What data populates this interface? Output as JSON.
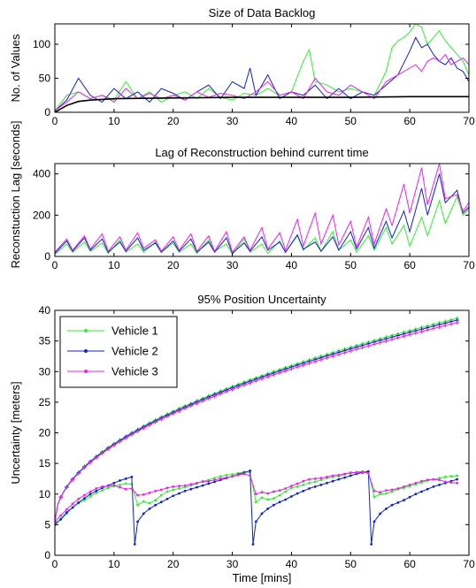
{
  "colors": {
    "vehicle1": "#33ee33",
    "vehicle2": "#1122cc",
    "vehicle3": "#ee22ee",
    "reference": "#000000"
  },
  "chart_data": [
    {
      "type": "line",
      "title": "Size of Data Backlog",
      "xlabel": "",
      "ylabel": "No. of Values",
      "xlim": [
        0,
        70
      ],
      "ylim": [
        0,
        130
      ],
      "xticks": [
        0,
        10,
        20,
        30,
        40,
        50,
        60,
        70
      ],
      "yticks": [
        0,
        50,
        100
      ],
      "series": [
        {
          "key": "vehicle1",
          "name": "Vehicle 1",
          "x": [
            0,
            2,
            4,
            6,
            8,
            10,
            12,
            14,
            16,
            18,
            20,
            22,
            24,
            26,
            28,
            30,
            32,
            34,
            36,
            38,
            40,
            42,
            43,
            44,
            46,
            48,
            50,
            52,
            54,
            56,
            57,
            58,
            59,
            60,
            61,
            62,
            63,
            64,
            65,
            66,
            67,
            68,
            69,
            70
          ],
          "y": [
            2,
            25,
            30,
            20,
            25,
            18,
            45,
            20,
            30,
            15,
            25,
            30,
            20,
            35,
            22,
            18,
            28,
            25,
            35,
            25,
            30,
            75,
            92,
            45,
            40,
            30,
            35,
            30,
            25,
            60,
            95,
            105,
            110,
            118,
            130,
            125,
            100,
            110,
            120,
            105,
            95,
            85,
            75,
            55
          ]
        },
        {
          "key": "vehicle2",
          "name": "Vehicle 2",
          "x": [
            0,
            2,
            4,
            6,
            8,
            10,
            12,
            14,
            16,
            18,
            20,
            22,
            24,
            26,
            28,
            30,
            32,
            33,
            34,
            36,
            38,
            40,
            42,
            44,
            46,
            48,
            50,
            52,
            54,
            56,
            58,
            60,
            61,
            62,
            63,
            64,
            65,
            66,
            67,
            68,
            69,
            70
          ],
          "y": [
            2,
            18,
            50,
            25,
            15,
            35,
            20,
            30,
            15,
            35,
            28,
            18,
            30,
            40,
            20,
            45,
            35,
            65,
            25,
            55,
            20,
            30,
            25,
            40,
            20,
            35,
            20,
            30,
            25,
            40,
            55,
            90,
            110,
            95,
            100,
            85,
            75,
            70,
            80,
            65,
            60,
            45
          ]
        },
        {
          "key": "vehicle3",
          "name": "Vehicle 3",
          "x": [
            0,
            2,
            4,
            6,
            8,
            10,
            12,
            14,
            16,
            18,
            20,
            22,
            24,
            26,
            28,
            30,
            32,
            34,
            36,
            38,
            40,
            42,
            44,
            46,
            48,
            50,
            52,
            54,
            56,
            58,
            60,
            61,
            62,
            63,
            64,
            65,
            66,
            67,
            68,
            69,
            70
          ],
          "y": [
            2,
            15,
            30,
            20,
            25,
            15,
            35,
            20,
            28,
            20,
            25,
            18,
            30,
            22,
            28,
            25,
            20,
            30,
            45,
            25,
            30,
            20,
            50,
            30,
            25,
            40,
            30,
            20,
            45,
            55,
            65,
            70,
            60,
            75,
            80,
            75,
            85,
            70,
            75,
            80,
            70
          ]
        },
        {
          "key": "reference",
          "name": "",
          "x": [
            0,
            2,
            4,
            6,
            8,
            10,
            20,
            30,
            40,
            50,
            60,
            70
          ],
          "y": [
            0,
            10,
            16,
            18,
            19,
            20,
            21,
            22,
            22,
            22,
            23,
            23
          ]
        }
      ]
    },
    {
      "type": "line",
      "title": "Lag of Reconstruction behind current time",
      "xlabel": "",
      "ylabel": "Reconstuction Lag [seconds]",
      "xlim": [
        0,
        70
      ],
      "ylim": [
        0,
        450
      ],
      "xticks": [
        0,
        10,
        20,
        30,
        40,
        50,
        60,
        70
      ],
      "yticks": [
        0,
        200,
        400
      ],
      "series": [
        {
          "key": "vehicle1",
          "name": "Vehicle 1",
          "x": [
            0,
            2,
            3,
            5,
            6,
            8,
            9,
            11,
            12,
            14,
            15,
            17,
            18,
            20,
            21,
            23,
            24,
            26,
            27,
            29,
            30,
            32,
            33,
            35,
            36,
            38,
            39,
            41,
            42,
            44,
            45,
            47,
            48,
            50,
            51,
            53,
            54,
            56,
            57,
            59,
            60,
            62,
            63,
            65,
            66,
            68,
            69,
            70
          ],
          "y": [
            10,
            60,
            20,
            70,
            25,
            65,
            15,
            80,
            20,
            60,
            20,
            70,
            20,
            65,
            20,
            60,
            15,
            80,
            25,
            60,
            10,
            85,
            20,
            60,
            15,
            75,
            20,
            100,
            30,
            90,
            25,
            120,
            30,
            80,
            20,
            100,
            30,
            140,
            60,
            150,
            50,
            190,
            100,
            270,
            160,
            290,
            200,
            230
          ]
        },
        {
          "key": "vehicle2",
          "name": "Vehicle 2",
          "x": [
            0,
            2,
            3,
            5,
            6,
            8,
            9,
            11,
            12,
            14,
            15,
            17,
            18,
            20,
            21,
            23,
            24,
            26,
            27,
            29,
            30,
            32,
            33,
            35,
            36,
            38,
            39,
            41,
            42,
            44,
            45,
            47,
            48,
            50,
            51,
            53,
            54,
            56,
            57,
            59,
            60,
            62,
            63,
            65,
            66,
            68,
            69,
            70
          ],
          "y": [
            15,
            75,
            25,
            90,
            30,
            85,
            20,
            70,
            25,
            90,
            30,
            65,
            20,
            75,
            25,
            85,
            20,
            70,
            20,
            90,
            15,
            65,
            25,
            95,
            30,
            70,
            20,
            105,
            35,
            70,
            25,
            95,
            30,
            120,
            35,
            140,
            40,
            170,
            90,
            220,
            120,
            330,
            200,
            400,
            260,
            320,
            210,
            240
          ]
        },
        {
          "key": "vehicle3",
          "name": "Vehicle 3",
          "x": [
            0,
            2,
            3,
            5,
            6,
            8,
            9,
            11,
            12,
            14,
            15,
            17,
            18,
            20,
            21,
            23,
            24,
            26,
            27,
            29,
            30,
            32,
            33,
            35,
            36,
            38,
            39,
            41,
            42,
            44,
            45,
            47,
            48,
            50,
            51,
            53,
            54,
            56,
            57,
            59,
            60,
            62,
            63,
            65,
            66,
            68,
            69,
            70
          ],
          "y": [
            20,
            85,
            30,
            100,
            35,
            110,
            25,
            95,
            30,
            115,
            40,
            80,
            25,
            95,
            30,
            110,
            25,
            100,
            25,
            120,
            20,
            95,
            30,
            140,
            35,
            115,
            30,
            180,
            50,
            210,
            60,
            200,
            55,
            170,
            45,
            190,
            60,
            230,
            150,
            350,
            210,
            430,
            250,
            450,
            280,
            300,
            220,
            260
          ]
        }
      ]
    },
    {
      "type": "line",
      "title": "95% Position Uncertainty",
      "xlabel": "Time [mins]",
      "ylabel": "Uncertainty [meters]",
      "xlim": [
        0,
        70
      ],
      "ylim": [
        0,
        40
      ],
      "xticks": [
        0,
        10,
        20,
        30,
        40,
        50,
        60,
        70
      ],
      "yticks": [
        0,
        5,
        10,
        15,
        20,
        25,
        30,
        35,
        40
      ],
      "legend": {
        "position": "top-left",
        "entries": [
          "Vehicle 1",
          "Vehicle 2",
          "Vehicle 3"
        ]
      },
      "upper_growth": {
        "x_end": 68,
        "vehicle1_y_end": 38.7,
        "vehicle2_y_end": 38.4,
        "vehicle3_y_end": 38.0,
        "y_start": 5.5
      },
      "series": [
        {
          "key": "vehicle1",
          "name": "Vehicle 1",
          "x": [
            0,
            1,
            2,
            3,
            4,
            5,
            6,
            7,
            8,
            9,
            10,
            11,
            12,
            13,
            14,
            15,
            16,
            17,
            18,
            19,
            20,
            21,
            22,
            23,
            24,
            25,
            26,
            27,
            28,
            29,
            30,
            31,
            32,
            33,
            34,
            35,
            36,
            37,
            38,
            39,
            40,
            41,
            42,
            43,
            44,
            45,
            46,
            47,
            48,
            49,
            50,
            51,
            52,
            53,
            54,
            55,
            56,
            57,
            58,
            59,
            60,
            61,
            62,
            63,
            64,
            65,
            66,
            67,
            68
          ],
          "y": [
            5.2,
            5.8,
            6.8,
            7.8,
            8.5,
            9.0,
            9.6,
            10.2,
            10.6,
            11.0,
            11.3,
            11.5,
            11.7,
            11.6,
            8.2,
            8.8,
            8.5,
            9.0,
            9.8,
            10.4,
            10.7,
            10.9,
            11.1,
            11.4,
            11.7,
            12.1,
            12.3,
            12.6,
            12.9,
            13.1,
            13.2,
            13.4,
            13.6,
            13.5,
            8.7,
            9.4,
            9.1,
            9.3,
            9.8,
            10.4,
            11.0,
            11.2,
            11.5,
            11.8,
            12.0,
            12.3,
            12.6,
            12.8,
            12.9,
            13.2,
            13.4,
            13.6,
            13.7,
            13.6,
            9.5,
            10.0,
            10.1,
            10.4,
            10.8,
            11.0,
            11.3,
            11.6,
            11.9,
            12.2,
            12.4,
            12.6,
            12.8,
            12.9,
            13.0
          ]
        },
        {
          "key": "vehicle2",
          "name": "Vehicle 2",
          "x": [
            0,
            1,
            2,
            3,
            4,
            5,
            6,
            7,
            8,
            9,
            10,
            11,
            12,
            13,
            13.5,
            14,
            15,
            16,
            17,
            18,
            19,
            20,
            21,
            22,
            23,
            24,
            25,
            26,
            27,
            28,
            29,
            30,
            31,
            32,
            33,
            33.5,
            34,
            35,
            36,
            37,
            38,
            39,
            40,
            41,
            42,
            43,
            44,
            45,
            46,
            47,
            48,
            49,
            50,
            51,
            52,
            53,
            53.5,
            54,
            55,
            56,
            57,
            58,
            59,
            60,
            61,
            62,
            63,
            64,
            65,
            66,
            67,
            68
          ],
          "y": [
            5.0,
            5.9,
            7.0,
            7.8,
            8.6,
            9.3,
            10.0,
            10.5,
            11.0,
            11.4,
            11.8,
            12.2,
            12.5,
            12.8,
            1.8,
            5.5,
            6.8,
            7.6,
            8.2,
            8.7,
            9.2,
            9.7,
            10.1,
            10.5,
            10.8,
            11.1,
            11.4,
            11.7,
            12.0,
            12.3,
            12.6,
            12.9,
            13.2,
            13.5,
            13.8,
            1.8,
            5.5,
            6.8,
            7.6,
            8.2,
            8.7,
            9.1,
            9.6,
            10.1,
            10.5,
            10.9,
            11.2,
            11.5,
            11.8,
            12.1,
            12.4,
            12.7,
            13.0,
            13.3,
            13.5,
            13.7,
            1.8,
            5.5,
            6.8,
            7.6,
            8.2,
            8.6,
            9.0,
            9.5,
            10.0,
            10.4,
            10.8,
            11.2,
            11.5,
            11.8,
            12.1,
            12.4
          ]
        },
        {
          "key": "vehicle3",
          "name": "Vehicle 3",
          "x": [
            0,
            1,
            2,
            3,
            4,
            5,
            6,
            7,
            8,
            9,
            10,
            11,
            12,
            13,
            14,
            15,
            16,
            17,
            18,
            19,
            20,
            21,
            22,
            23,
            24,
            25,
            26,
            27,
            28,
            29,
            30,
            31,
            32,
            33,
            34,
            35,
            36,
            37,
            38,
            39,
            40,
            41,
            42,
            43,
            44,
            45,
            46,
            47,
            48,
            49,
            50,
            51,
            52,
            53,
            54,
            55,
            56,
            57,
            58,
            59,
            60,
            61,
            62,
            63,
            64,
            65,
            66,
            67,
            68
          ],
          "y": [
            5.5,
            6.5,
            7.5,
            8.4,
            9.2,
            9.8,
            10.4,
            10.9,
            11.2,
            11.3,
            11.4,
            11.1,
            10.8,
            10.9,
            9.8,
            9.9,
            10.2,
            10.5,
            10.7,
            11.0,
            11.2,
            11.3,
            11.4,
            11.6,
            11.8,
            12.0,
            12.1,
            12.3,
            12.5,
            12.7,
            12.9,
            13.1,
            13.3,
            13.0,
            10.0,
            10.3,
            10.1,
            10.4,
            10.6,
            10.9,
            11.3,
            11.7,
            12.1,
            12.4,
            12.5,
            12.6,
            12.8,
            13.0,
            13.1,
            13.3,
            13.5,
            13.5,
            13.6,
            13.4,
            10.5,
            10.3,
            10.6,
            10.7,
            10.9,
            11.2,
            11.5,
            11.8,
            12.1,
            12.3,
            12.4,
            12.3,
            12.0,
            11.9,
            11.8
          ]
        }
      ]
    }
  ]
}
